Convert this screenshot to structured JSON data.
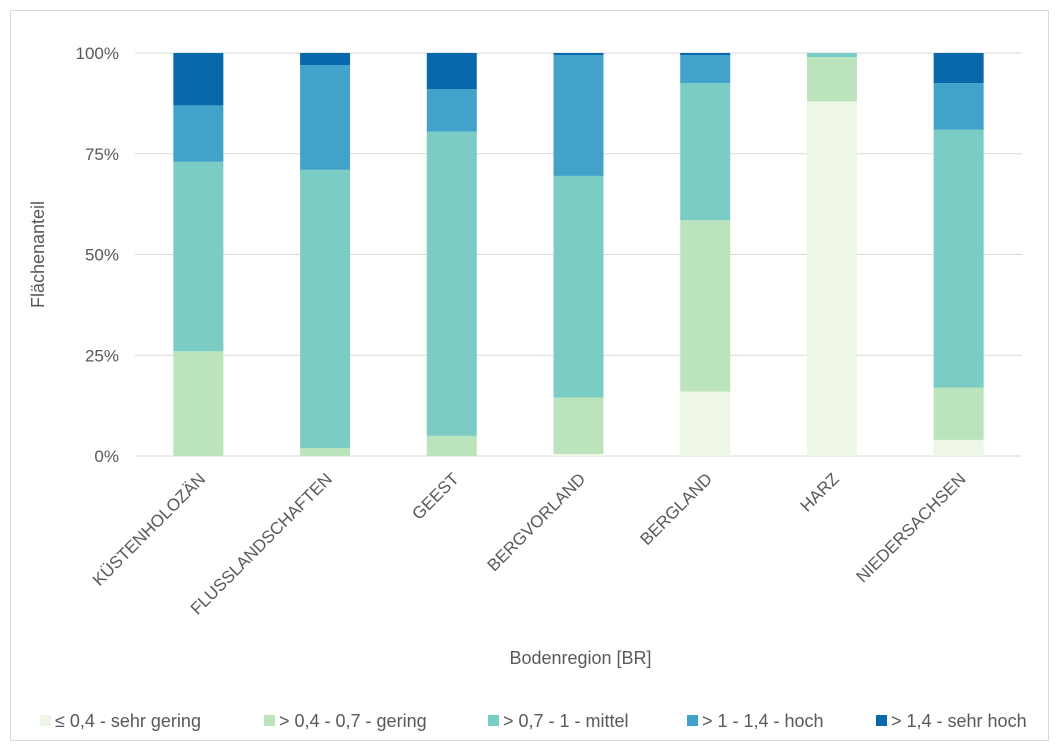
{
  "chart_data": {
    "type": "stacked-bar-100",
    "title": "",
    "xlabel": "Bodenregion [BR]",
    "ylabel": "Flächenanteil",
    "ylim": [
      0,
      100
    ],
    "yticks": [
      "0%",
      "25%",
      "50%",
      "75%",
      "100%"
    ],
    "grid": true,
    "legend_position": "bottom",
    "categories": [
      "KÜSTENHOLOZÄN",
      "FLUSSLANDSCHAFTEN",
      "GEEST",
      "BERGVORLAND",
      "BERGLAND",
      "HARZ",
      "NIEDERSACHSEN"
    ],
    "series": [
      {
        "name": "≤ 0,4  - sehr gering",
        "color": "#eef7e6",
        "values": [
          0,
          0,
          0,
          0.5,
          16,
          88,
          4
        ]
      },
      {
        "name": "> 0,4 - 0,7 - gering",
        "color": "#bbe4bd",
        "values": [
          26,
          2,
          5,
          14,
          42.5,
          11,
          13
        ]
      },
      {
        "name": "> 0,7 - 1 - mittel",
        "color": "#7bccc4",
        "values": [
          47,
          69,
          75.5,
          55,
          34,
          1,
          64
        ]
      },
      {
        "name": "> 1 - 1,4 - hoch",
        "color": "#43a2ca",
        "values": [
          14,
          26,
          10.5,
          30,
          7,
          0,
          11.5
        ]
      },
      {
        "name": "> 1,4 - sehr hoch",
        "color": "#0868ac",
        "values": [
          13,
          3,
          9,
          0.5,
          0.5,
          0,
          7.5
        ]
      }
    ]
  }
}
